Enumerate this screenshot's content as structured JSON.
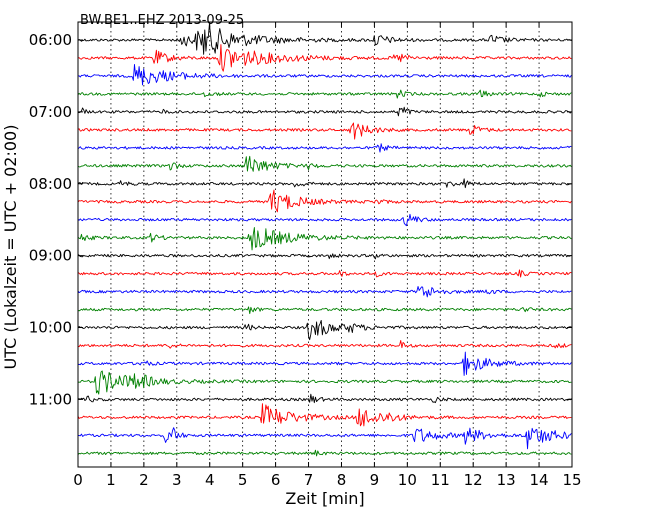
{
  "chart_data": {
    "type": "line",
    "title": "BW.BE1..EHZ 2013-09-25",
    "xlabel": "Zeit  [min]",
    "ylabel": "UTC (Lokalzeit = UTC + 02:00)",
    "xlim": [
      0,
      15
    ],
    "x_ticks": [
      "0",
      "1",
      "2",
      "3",
      "4",
      "5",
      "6",
      "7",
      "8",
      "9",
      "10",
      "11",
      "12",
      "13",
      "14",
      "15"
    ],
    "y_ticks": [
      "06:00",
      "07:00",
      "08:00",
      "09:00",
      "10:00",
      "11:00"
    ],
    "grid": "vertical dotted lines at each minute",
    "trace_interval_minutes": 15,
    "trace_colors": [
      "#000000",
      "#ff0000",
      "#0000ff",
      "#008000"
    ],
    "traces": [
      {
        "start": "06:00",
        "events": [
          [
            3.1,
            0.5,
            1.8
          ],
          [
            3.6,
            0.6,
            1.0
          ],
          [
            3.8,
            1.0,
            4.0
          ],
          [
            9.0,
            0.5,
            1.2
          ],
          [
            12.5,
            0.4,
            1.2
          ]
        ]
      },
      {
        "start": "06:15",
        "events": [
          [
            2.25,
            0.7,
            1.3
          ],
          [
            4.3,
            1.0,
            4.2
          ],
          [
            9.6,
            0.2,
            1.0
          ],
          [
            9.8,
            0.2,
            0.6
          ]
        ]
      },
      {
        "start": "06:30",
        "events": [
          [
            1.7,
            0.9,
            3.0
          ]
        ]
      },
      {
        "start": "06:45",
        "events": [
          [
            3.8,
            0.2,
            0.8
          ],
          [
            9.7,
            0.35,
            0.6
          ],
          [
            12.2,
            0.35,
            0.6
          ],
          [
            14.0,
            0.2,
            0.6
          ]
        ]
      },
      {
        "start": "07:00",
        "events": [
          [
            0.15,
            0.4,
            0.2
          ],
          [
            2.6,
            0.3,
            0.2
          ],
          [
            9.75,
            0.9,
            0.2
          ],
          [
            9.9,
            0.4,
            0.4
          ]
        ]
      },
      {
        "start": "07:15",
        "events": [
          [
            8.3,
            0.8,
            1.4
          ],
          [
            11.9,
            0.5,
            0.8
          ]
        ]
      },
      {
        "start": "07:30",
        "events": [
          [
            9.1,
            0.35,
            0.7
          ],
          [
            14.9,
            0.2,
            0.4
          ]
        ]
      },
      {
        "start": "07:45",
        "events": [
          [
            2.8,
            0.4,
            0.6
          ],
          [
            5.1,
            0.9,
            1.8
          ],
          [
            7.0,
            0.2,
            0.6
          ]
        ]
      },
      {
        "start": "08:00",
        "events": [
          [
            1.3,
            0.3,
            0.5
          ],
          [
            6.6,
            0.4,
            0.6
          ],
          [
            11.2,
            0.3,
            0.6
          ],
          [
            11.7,
            0.3,
            0.6
          ]
        ]
      },
      {
        "start": "08:15",
        "events": [
          [
            5.85,
            1.0,
            2.2
          ],
          [
            9.0,
            0.2,
            0.8
          ]
        ]
      },
      {
        "start": "08:30",
        "events": [
          [
            9.9,
            0.5,
            0.8
          ],
          [
            10.1,
            0.3,
            0.4
          ]
        ]
      },
      {
        "start": "08:45",
        "events": [
          [
            2.2,
            0.3,
            0.8
          ],
          [
            5.2,
            1.0,
            3.2
          ],
          [
            0.1,
            0.25,
            0.8
          ]
        ]
      },
      {
        "start": "09:00",
        "events": [
          [
            7.6,
            0.2,
            0.5
          ],
          [
            9.0,
            0.2,
            0.5
          ]
        ]
      },
      {
        "start": "09:15",
        "events": [
          [
            7.9,
            0.3,
            0.5
          ],
          [
            9.0,
            0.25,
            0.5
          ],
          [
            13.4,
            0.25,
            0.5
          ]
        ]
      },
      {
        "start": "09:30",
        "events": [
          [
            10.35,
            0.8,
            1.2
          ],
          [
            12.4,
            0.3,
            0.5
          ]
        ]
      },
      {
        "start": "09:45",
        "events": [
          [
            5.2,
            0.3,
            0.5
          ],
          [
            13.5,
            0.25,
            0.5
          ]
        ]
      },
      {
        "start": "10:00",
        "events": [
          [
            5.1,
            0.3,
            0.5
          ],
          [
            7.0,
            0.9,
            2.2
          ],
          [
            8.2,
            0.3,
            0.8
          ]
        ]
      },
      {
        "start": "10:15",
        "events": [
          [
            2.7,
            0.3,
            0.5
          ],
          [
            9.8,
            0.3,
            0.5
          ],
          [
            14.5,
            0.3,
            0.5
          ]
        ]
      },
      {
        "start": "10:30",
        "events": [
          [
            1.9,
            0.35,
            0.6
          ],
          [
            11.7,
            0.9,
            2.0
          ]
        ]
      },
      {
        "start": "10:45",
        "events": [
          [
            0.55,
            1.0,
            3.2
          ],
          [
            1.75,
            0.6,
            0.8
          ]
        ]
      },
      {
        "start": "11:00",
        "events": [
          [
            0.3,
            0.25,
            0.5
          ],
          [
            7.0,
            0.5,
            0.6
          ],
          [
            10.8,
            0.25,
            0.5
          ]
        ]
      },
      {
        "start": "11:15",
        "events": [
          [
            5.6,
            1.0,
            2.6
          ],
          [
            8.5,
            0.9,
            2.0
          ],
          [
            9.4,
            0.3,
            0.6
          ]
        ]
      },
      {
        "start": "11:30",
        "events": [
          [
            2.65,
            0.5,
            0.6
          ],
          [
            2.85,
            0.6,
            0.5
          ],
          [
            10.2,
            0.7,
            1.8
          ],
          [
            11.7,
            0.7,
            1.6
          ],
          [
            13.6,
            1.0,
            2.2
          ]
        ]
      },
      {
        "start": "11:45",
        "events": [
          [
            7.2,
            0.2,
            0.5
          ]
        ]
      }
    ]
  }
}
